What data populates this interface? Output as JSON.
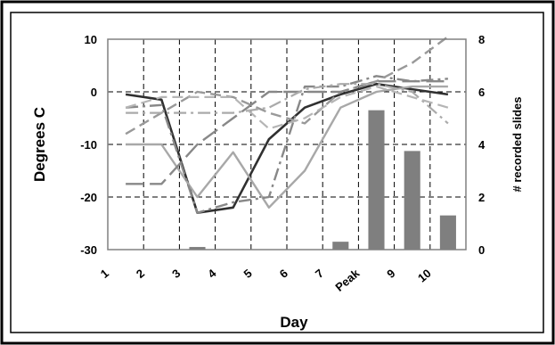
{
  "chart_data": {
    "type": "line",
    "title": "",
    "xlabel": "Day",
    "ylabel": "Degrees C",
    "y2label": "# recorded slides",
    "categories": [
      "1",
      "2",
      "3",
      "4",
      "5",
      "6",
      "7",
      "Peak",
      "9",
      "10"
    ],
    "ylim": [
      -30,
      10
    ],
    "y2lim": [
      0,
      8
    ],
    "yticks": [
      "-30",
      "-20",
      "-10",
      "0",
      "10"
    ],
    "y2ticks": [
      "0",
      "2",
      "4",
      "6",
      "8"
    ],
    "grid": true,
    "legend": "none",
    "temperature_series": [
      {
        "values": [
          -0.5,
          -1.5,
          -23,
          -22,
          -9,
          -3,
          -0.5,
          1.5,
          0.5,
          -0.5
        ],
        "color": "#303030",
        "style": "solid",
        "width": 2.6
      },
      {
        "values": [
          -10,
          -10,
          -20,
          -11.5,
          -22,
          -15,
          -3,
          0,
          1,
          1
        ],
        "color": "#a8a8a8",
        "style": "solid",
        "width": 2.4
      },
      {
        "values": [
          -3,
          -2.5,
          -23,
          -21,
          -20,
          1,
          1,
          3,
          2,
          2.5
        ],
        "color": "#888888",
        "style": "dashdot",
        "width": 2.4
      },
      {
        "values": [
          -8,
          -4,
          0,
          -1,
          -4,
          -6,
          0,
          2,
          5.5,
          10.5
        ],
        "color": "#999999",
        "style": "dash",
        "width": 2.4
      },
      {
        "values": [
          -17.5,
          -17.5,
          -10,
          -5,
          0,
          0,
          0,
          2,
          2,
          2
        ],
        "color": "#888888",
        "style": "longdash",
        "width": 2.4
      },
      {
        "values": [
          -4,
          -4,
          -4,
          -4,
          -3,
          0.5,
          1.5,
          1.5,
          0,
          -6
        ],
        "color": "#aaaaaa",
        "style": "dashdot",
        "width": 2.2
      },
      {
        "values": [
          -3,
          -1,
          -1,
          -1,
          -7,
          -5,
          -1,
          1,
          -1,
          -3
        ],
        "color": "#b5b5b5",
        "style": "dash",
        "width": 2.2
      }
    ],
    "bar_series": {
      "axis": "secondary",
      "color": "#7f7f7f",
      "values": [
        0,
        0,
        0.1,
        0,
        0,
        0,
        0.3,
        5.3,
        3.75,
        1.3
      ]
    }
  }
}
